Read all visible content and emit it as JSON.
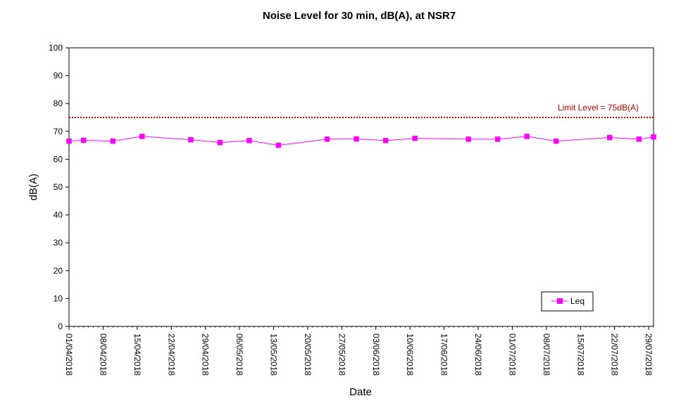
{
  "chart_data": {
    "type": "line",
    "title": "Noise Level for 30 min, dB(A), at NSR7",
    "xlabel": "Date",
    "ylabel": "dB(A)",
    "ylim": [
      0,
      100
    ],
    "yticks": [
      0,
      10,
      20,
      30,
      40,
      50,
      60,
      70,
      80,
      90,
      100
    ],
    "xlim": [
      "01/04/2018",
      "30/07/2018"
    ],
    "x_tick_labels": [
      "01/04/2018",
      "08/04/2018",
      "15/04/2018",
      "22/04/2018",
      "29/04/2018",
      "06/05/2018",
      "13/05/2018",
      "20/05/2018",
      "27/05/2018",
      "03/06/2018",
      "10/06/2018",
      "17/06/2018",
      "24/06/2018",
      "01/07/2018",
      "08/07/2018",
      "15/07/2018",
      "22/07/2018",
      "29/07/2018"
    ],
    "grid": false,
    "legend_position": "bottom-right",
    "series": [
      {
        "name": "Leq",
        "color": "#FF00FF",
        "marker": "square",
        "x": [
          "01/04/2018",
          "04/04/2018",
          "10/04/2018",
          "16/04/2018",
          "26/04/2018",
          "02/05/2018",
          "08/05/2018",
          "14/05/2018",
          "24/05/2018",
          "30/05/2018",
          "05/06/2018",
          "11/06/2018",
          "22/06/2018",
          "28/06/2018",
          "04/07/2018",
          "10/07/2018",
          "21/07/2018",
          "27/07/2018",
          "30/07/2018"
        ],
        "y": [
          66.5,
          66.8,
          66.5,
          68.2,
          67.0,
          66.0,
          66.7,
          65.0,
          67.2,
          67.3,
          66.7,
          67.5,
          67.2,
          67.2,
          68.2,
          66.5,
          67.8,
          67.2,
          68.0
        ]
      }
    ],
    "limit_line": {
      "label": "Limit Level  = 75dB(A)",
      "value": 75,
      "color": "#C00000"
    }
  }
}
